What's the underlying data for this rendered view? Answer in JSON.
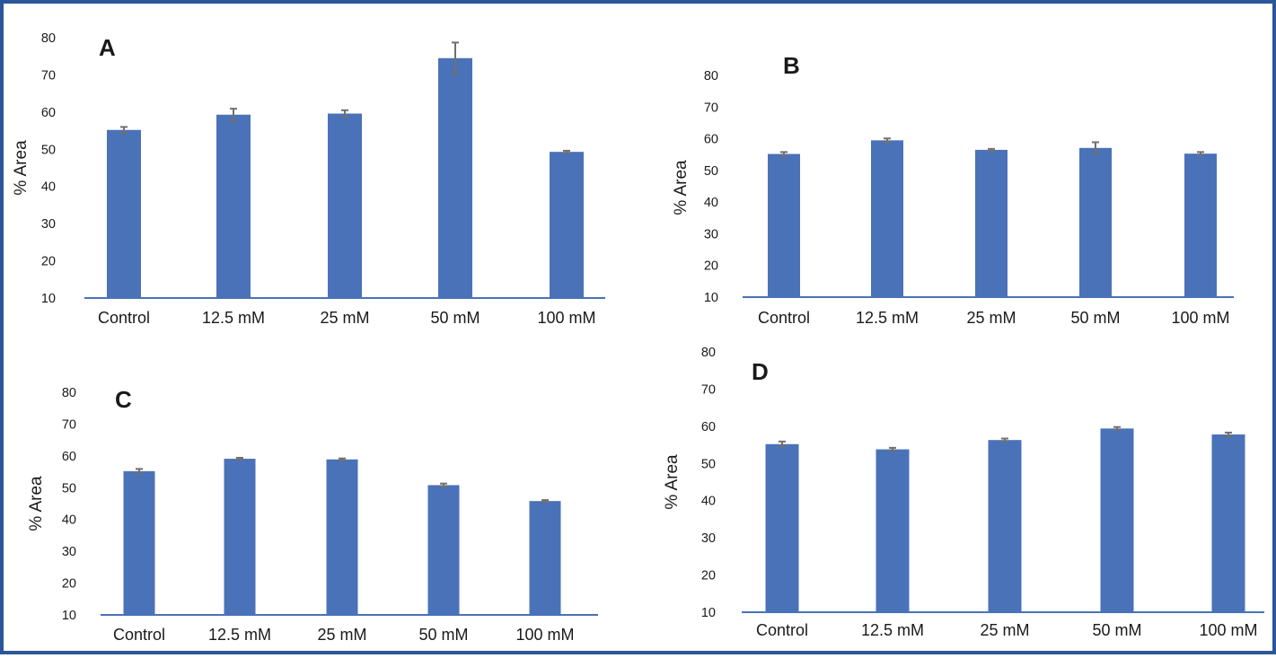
{
  "colors": {
    "bar": "#4a72b8",
    "axis": "#4a72b8",
    "error_bar": "#707070",
    "border": "#2b579a"
  },
  "chart_data": [
    {
      "type": "bar",
      "panel": "A",
      "ylabel": "% Area",
      "ylim": [
        10,
        80
      ],
      "yticks": [
        "10",
        "20",
        "30",
        "40",
        "50",
        "60",
        "70",
        "80"
      ],
      "categories": [
        "Control",
        "12.5 mM",
        "25 mM",
        "50 mM",
        "100 mM"
      ],
      "values": [
        55.2,
        59.3,
        59.6,
        74.5,
        49.3
      ],
      "errors": [
        0.8,
        1.6,
        0.9,
        4.2,
        0.3
      ]
    },
    {
      "type": "bar",
      "panel": "B",
      "ylabel": "% Area",
      "ylim": [
        10,
        80
      ],
      "yticks": [
        "10",
        "20",
        "30",
        "40",
        "50",
        "60",
        "70",
        "80"
      ],
      "categories": [
        "Control",
        "12.5 mM",
        "25 mM",
        "50 mM",
        "100 mM"
      ],
      "values": [
        55.2,
        59.5,
        56.5,
        57.1,
        55.3
      ],
      "errors": [
        0.6,
        0.6,
        0.3,
        1.8,
        0.5
      ]
    },
    {
      "type": "bar",
      "panel": "C",
      "ylabel": "% Area",
      "ylim": [
        10,
        80
      ],
      "yticks": [
        "10",
        "20",
        "30",
        "40",
        "50",
        "60",
        "70",
        "80"
      ],
      "categories": [
        "Control",
        "12.5 mM",
        "25 mM",
        "50 mM",
        "100 mM"
      ],
      "values": [
        55.2,
        59.1,
        58.9,
        50.8,
        45.8
      ],
      "errors": [
        0.7,
        0.3,
        0.3,
        0.5,
        0.3
      ]
    },
    {
      "type": "bar",
      "panel": "D",
      "ylabel": "% Area",
      "ylim": [
        10,
        80
      ],
      "yticks": [
        "10",
        "20",
        "30",
        "40",
        "50",
        "60",
        "70",
        "80"
      ],
      "categories": [
        "Control",
        "12.5 mM",
        "25 mM",
        "50 mM",
        "100 mM"
      ],
      "values": [
        55.2,
        53.8,
        56.3,
        59.4,
        57.8
      ],
      "errors": [
        0.7,
        0.4,
        0.4,
        0.4,
        0.5
      ]
    }
  ]
}
